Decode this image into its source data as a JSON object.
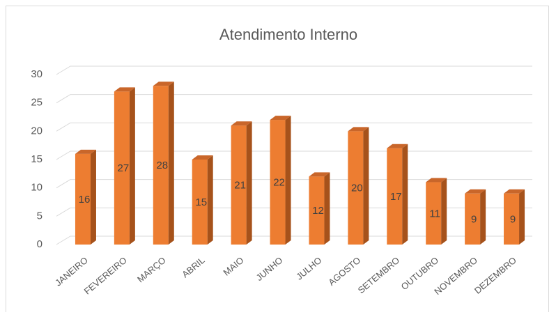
{
  "chart_data": {
    "type": "bar",
    "title": "Atendimento Interno",
    "categories": [
      "JANEIRO",
      "FEVEREIRO",
      "MARÇO",
      "ABRIL",
      "MAIO",
      "JUNHO",
      "JULHO",
      "AGOSTO",
      "SETEMBRO",
      "OUTUBRO",
      "NOVEMBRO",
      "DEZEMBRO"
    ],
    "values": [
      16,
      27,
      28,
      15,
      21,
      22,
      12,
      20,
      17,
      11,
      9,
      9
    ],
    "ylim": [
      0,
      30
    ],
    "yticks": [
      "0",
      "5",
      "10",
      "15",
      "20",
      "25",
      "30"
    ],
    "grid": true,
    "legend": "none",
    "bar_color": "#ED7D31",
    "bar_side_color": "#A6521B",
    "bar_top_color": "#C9662A",
    "data_labels": true,
    "style": "3d-column"
  }
}
